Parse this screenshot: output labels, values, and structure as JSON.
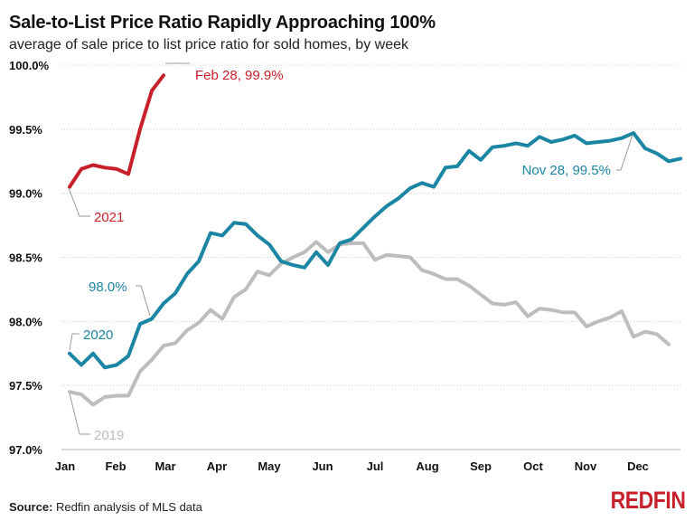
{
  "chart_data": {
    "type": "line",
    "title": "Sale-to-List Price Ratio Rapidly Approaching 100%",
    "subtitle": "average of sale price to list price ratio for sold homes, by week",
    "xlabel": "",
    "ylabel": "",
    "x_tick_labels": [
      "Jan",
      "Feb",
      "Mar",
      "Apr",
      "May",
      "Jun",
      "Jul",
      "Aug",
      "Sep",
      "Oct",
      "Nov",
      "Dec"
    ],
    "y_tick_labels": [
      "97.0%",
      "97.5%",
      "98.0%",
      "98.5%",
      "99.0%",
      "99.5%",
      "100.0%"
    ],
    "ylim": [
      97.0,
      100.0
    ],
    "grid": true,
    "series": [
      {
        "name": "2019",
        "color": "#bdbdbd",
        "values": [
          97.45,
          97.43,
          97.35,
          97.41,
          97.42,
          97.42,
          97.61,
          97.7,
          97.81,
          97.83,
          97.93,
          97.99,
          98.09,
          98.02,
          98.19,
          98.25,
          98.39,
          98.36,
          98.45,
          98.5,
          98.54,
          98.62,
          98.54,
          98.6,
          98.61,
          98.61,
          98.48,
          98.52,
          98.51,
          98.5,
          98.4,
          98.37,
          98.33,
          98.33,
          98.28,
          98.21,
          98.14,
          98.13,
          98.15,
          98.04,
          98.1,
          98.09,
          98.07,
          98.07,
          97.96,
          98.0,
          98.03,
          98.08,
          97.88,
          97.92,
          97.9,
          97.82
        ]
      },
      {
        "name": "2020",
        "color": "#1a86a3",
        "values": [
          97.75,
          97.66,
          97.75,
          97.64,
          97.66,
          97.73,
          97.98,
          98.02,
          98.14,
          98.22,
          98.37,
          98.47,
          98.69,
          98.67,
          98.77,
          98.76,
          98.67,
          98.6,
          98.47,
          98.44,
          98.42,
          98.54,
          98.44,
          98.61,
          98.64,
          98.73,
          98.82,
          98.9,
          98.96,
          99.04,
          99.08,
          99.05,
          99.2,
          99.21,
          99.33,
          99.26,
          99.36,
          99.37,
          99.39,
          99.37,
          99.44,
          99.4,
          99.42,
          99.45,
          99.39,
          99.4,
          99.41,
          99.43,
          99.47,
          99.35,
          99.31,
          99.25,
          99.27
        ]
      },
      {
        "name": "2021",
        "color": "#c8202b",
        "values": [
          99.05,
          99.19,
          99.22,
          99.2,
          99.19,
          99.15,
          99.5,
          99.8,
          99.92
        ]
      }
    ],
    "annotations": [
      {
        "text": "Feb 28, 99.9%",
        "series": "2021",
        "color": "#c8202b"
      },
      {
        "text": "2021",
        "series": "2021",
        "color": "#c8202b"
      },
      {
        "text": "98.0%",
        "series": "2020",
        "color": "#1a86a3"
      },
      {
        "text": "2020",
        "series": "2020",
        "color": "#1a86a3"
      },
      {
        "text": "Nov 28, 99.5%",
        "series": "2020",
        "color": "#1a86a3"
      },
      {
        "text": "2019",
        "series": "2019",
        "color": "#bdbdbd"
      }
    ]
  },
  "footer": {
    "source_label": "Source:",
    "source_text": " Redfin analysis of MLS data",
    "logo": "REDFIN"
  }
}
